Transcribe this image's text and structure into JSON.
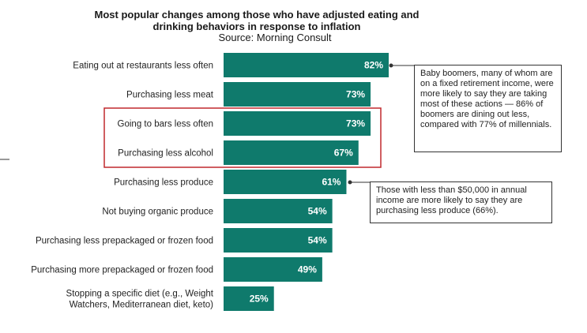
{
  "chart_data": {
    "type": "bar",
    "orientation": "horizontal",
    "title_line1": "Most popular changes among those who have adjusted eating and",
    "title_line2": "drinking behaviors in response to inflation",
    "source": "Source: Morning Consult",
    "categories": [
      [
        "Eating out at restaurants less often"
      ],
      [
        "Purchasing less meat"
      ],
      [
        "Going to bars less often"
      ],
      [
        "Purchasing less alcohol"
      ],
      [
        "Purchasing less produce"
      ],
      [
        "Not buying organic produce"
      ],
      [
        "Purchasing less prepackaged or frozen food"
      ],
      [
        "Purchasing more prepackaged or frozen food"
      ],
      [
        "Stopping a specific diet (e.g., Weight",
        "Watchers, Mediterranean diet, keto)"
      ]
    ],
    "values": [
      82,
      73,
      73,
      67,
      61,
      54,
      54,
      49,
      25
    ],
    "value_labels": [
      "82%",
      "73%",
      "73%",
      "67%",
      "61%",
      "54%",
      "54%",
      "49%",
      "25%"
    ],
    "highlighted": [
      "Going to bars less often",
      "Purchasing less alcohol"
    ],
    "annotations": [
      {
        "target": "Eating out at restaurants less often",
        "text": "Baby boomers, many of whom are on a fixed retirement income, were more likely to say they are taking most of these actions — 86% of boomers are dining out less, compared with 77% of millennials."
      },
      {
        "target": "Purchasing less produce",
        "text": "Those with less than $50,000 in annual income are more likely to say they are purchasing less produce (66%)."
      }
    ],
    "colors": {
      "bar": "#0f7a6c",
      "highlight_box": "#c0292d",
      "text": "#222222"
    },
    "grid": false,
    "legend": "none"
  }
}
